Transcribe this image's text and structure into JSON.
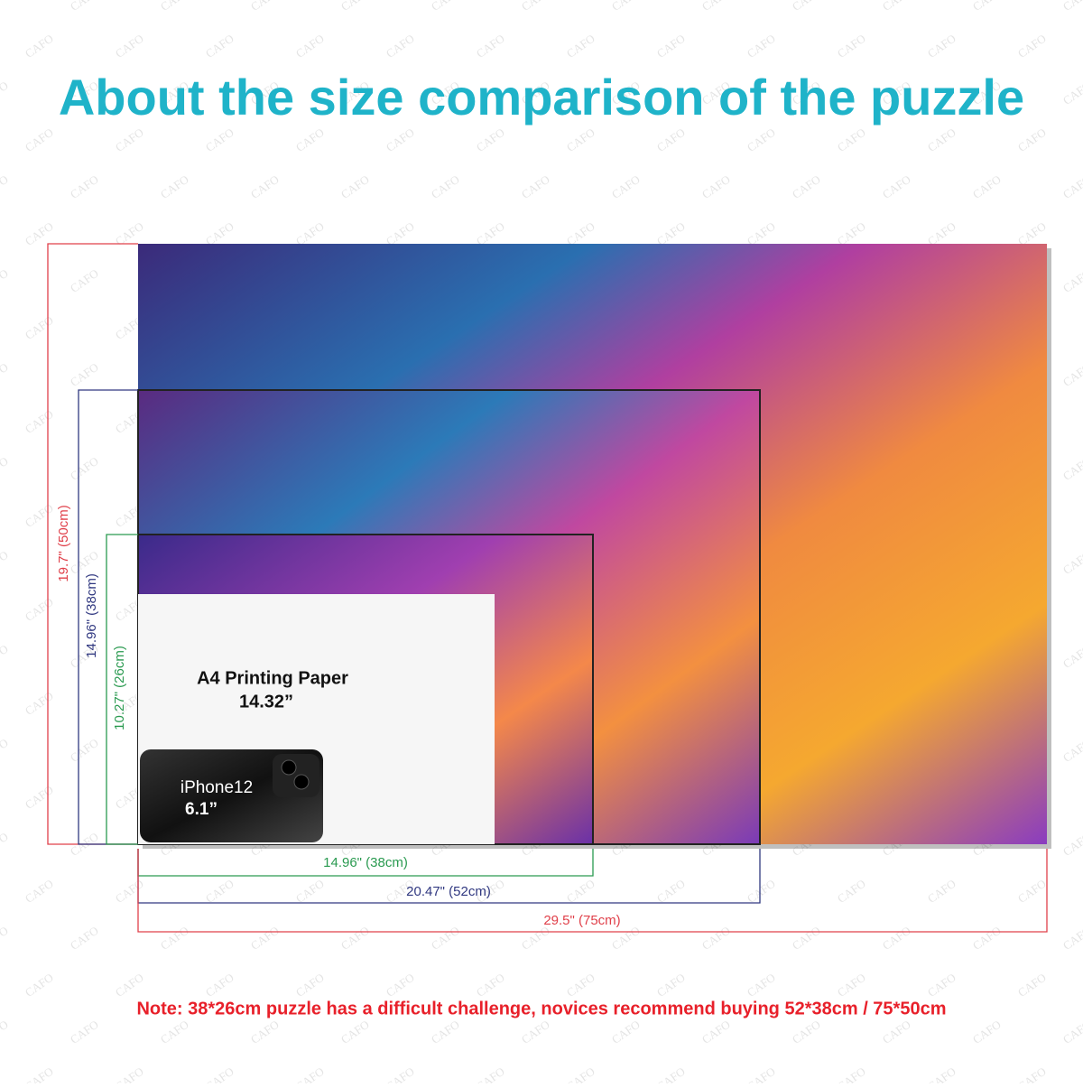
{
  "title": "About the size comparison of the puzzle",
  "watermark": "CAFO",
  "dimensions": {
    "large": {
      "width": "29.5\" (75cm)",
      "height": "19.7\" (50cm)"
    },
    "medium": {
      "width": "20.47\" (52cm)",
      "height": "14.96\" (38cm)"
    },
    "small": {
      "width": "14.96\" (38cm)",
      "height": "10.27\" (26cm)"
    }
  },
  "a4": {
    "title": "A4 Printing Paper",
    "size": "14.32”"
  },
  "iphone": {
    "model": "iPhone12",
    "size": "6.1”"
  },
  "note": "Note:  38*26cm puzzle has a difficult challenge, novices recommend buying 52*38cm / 75*50cm"
}
